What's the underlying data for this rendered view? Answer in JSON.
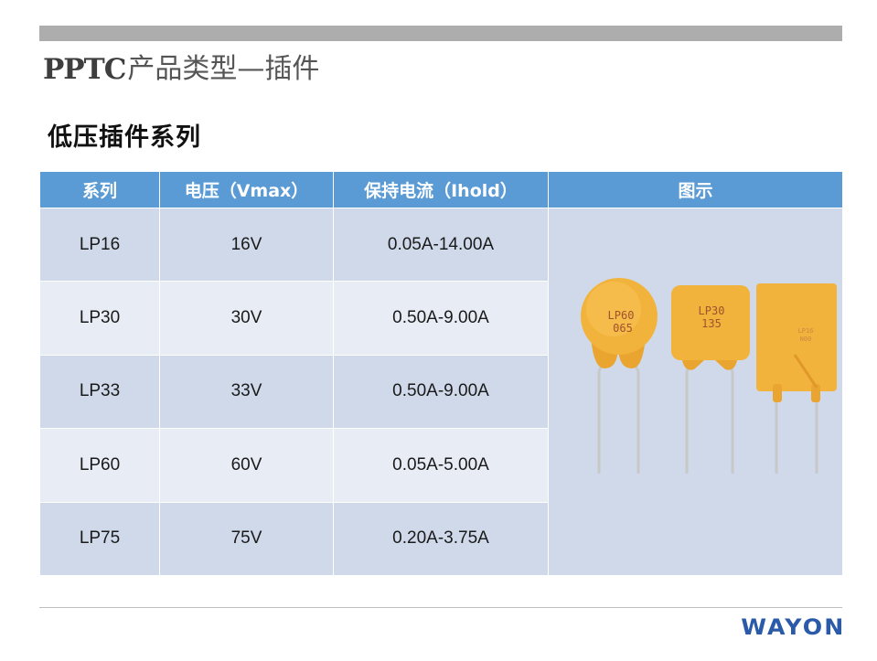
{
  "title": {
    "latin": "PPTC",
    "cjk": "产品类型—插件"
  },
  "subtitle": "低压插件系列",
  "table": {
    "headers": [
      "系列",
      "电压（Vmax）",
      "保持电流（Ihold）",
      "图示"
    ],
    "rows": [
      [
        "LP16",
        "16V",
        "0.05A-14.00A"
      ],
      [
        "LP30",
        "30V",
        "0.50A-9.00A"
      ],
      [
        "LP33",
        "33V",
        "0.50A-9.00A"
      ],
      [
        "LP60",
        "60V",
        "0.05A-5.00A"
      ],
      [
        "LP75",
        "75V",
        "0.20A-3.75A"
      ]
    ]
  },
  "image": {
    "components": [
      {
        "shape": "round",
        "label_line1": "LP60",
        "label_line2": "065"
      },
      {
        "shape": "rounded-square",
        "label_line1": "LP30",
        "label_line2": "135"
      },
      {
        "shape": "rectangle",
        "label_line1": "LP16",
        "label_line2": "N00"
      }
    ],
    "body_color": "#f2b33c"
  },
  "logo": "WAYON",
  "colors": {
    "header_bg": "#5b9bd5",
    "row_dark": "#cfd9ea",
    "row_light": "#e8edf5",
    "logo": "#2b5aa8"
  }
}
